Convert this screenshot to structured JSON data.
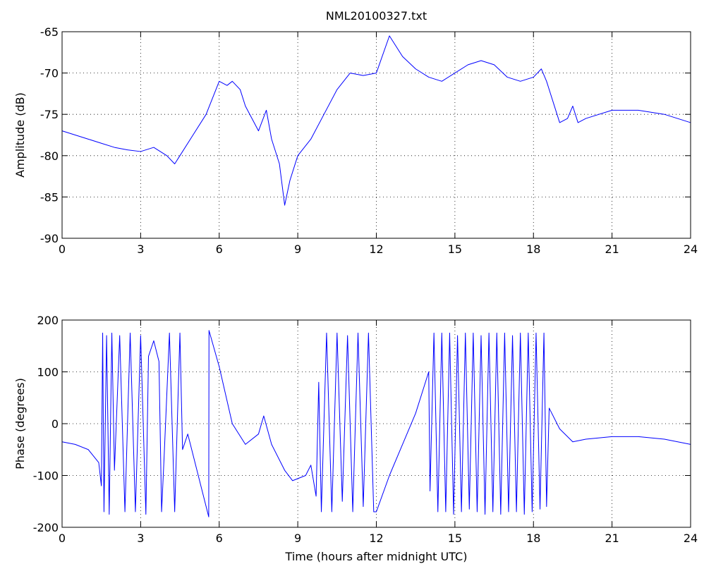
{
  "chart_data": [
    {
      "type": "line",
      "title": "NML20100327.txt",
      "ylabel": "Amplitude (dB)",
      "color": "#0000ff",
      "grid": true,
      "xlim": [
        0,
        24
      ],
      "xticks": [
        0,
        3,
        6,
        9,
        12,
        15,
        18,
        21,
        24
      ],
      "ylim": [
        -90,
        -65
      ],
      "yticks": [
        -90,
        -85,
        -80,
        -75,
        -70,
        -65
      ],
      "x": [
        0,
        0.5,
        1,
        1.5,
        2,
        2.5,
        3,
        3.5,
        4,
        4.3,
        4.5,
        5,
        5.5,
        6,
        6.3,
        6.5,
        6.8,
        7,
        7.5,
        7.8,
        8,
        8.3,
        8.5,
        8.7,
        9,
        9.5,
        10,
        10.5,
        11,
        11.5,
        12,
        12.5,
        13,
        13.5,
        14,
        14.5,
        15,
        15.5,
        16,
        16.5,
        17,
        17.5,
        18,
        18.3,
        18.5,
        19,
        19.3,
        19.5,
        19.7,
        20,
        21,
        22,
        23,
        24
      ],
      "values": [
        -77,
        -77.5,
        -78,
        -78.5,
        -79,
        -79.3,
        -79.5,
        -79,
        -80,
        -81,
        -80,
        -77.5,
        -75,
        -71,
        -71.5,
        -71,
        -72,
        -74,
        -77,
        -74.5,
        -78,
        -81,
        -86,
        -83,
        -80,
        -78,
        -75,
        -72,
        -70,
        -70.3,
        -70,
        -65.5,
        -68,
        -69.5,
        -70.5,
        -71,
        -70,
        -69,
        -68.5,
        -69,
        -70.5,
        -71,
        -70.5,
        -69.5,
        -71,
        -76,
        -75.5,
        -74,
        -76,
        -75.5,
        -74.5,
        -74.5,
        -75,
        -76
      ]
    },
    {
      "type": "line",
      "ylabel": "Phase (degrees)",
      "xlabel": "Time (hours after midnight UTC)",
      "color": "#0000ff",
      "grid": true,
      "xlim": [
        0,
        24
      ],
      "xticks": [
        0,
        3,
        6,
        9,
        12,
        15,
        18,
        21,
        24
      ],
      "ylim": [
        -200,
        200
      ],
      "yticks": [
        -200,
        -100,
        0,
        100,
        200
      ],
      "x": [
        0,
        0.5,
        1,
        1.4,
        1.5,
        1.55,
        1.6,
        1.7,
        1.8,
        1.9,
        2.0,
        2.2,
        2.4,
        2.6,
        2.8,
        3.0,
        3.2,
        3.3,
        3.5,
        3.7,
        3.8,
        3.9,
        4.1,
        4.3,
        4.5,
        4.6,
        4.8,
        5.2,
        5.6,
        5.61,
        6,
        6.5,
        7,
        7.5,
        7.7,
        8,
        8.5,
        8.8,
        9.3,
        9.5,
        9.7,
        9.8,
        9.9,
        10.1,
        10.3,
        10.5,
        10.7,
        10.9,
        11.1,
        11.3,
        11.5,
        11.7,
        11.9,
        12,
        12.5,
        13,
        13.5,
        14,
        14.05,
        14.2,
        14.35,
        14.5,
        14.65,
        14.8,
        14.95,
        15.1,
        15.25,
        15.4,
        15.55,
        15.7,
        15.85,
        16,
        16.15,
        16.3,
        16.45,
        16.6,
        16.75,
        16.9,
        17.05,
        17.2,
        17.35,
        17.5,
        17.65,
        17.8,
        17.95,
        18.1,
        18.25,
        18.4,
        18.5,
        18.6,
        19,
        19.5,
        20,
        21,
        22,
        23,
        24
      ],
      "values": [
        -35,
        -40,
        -50,
        -75,
        -120,
        175,
        -170,
        170,
        -175,
        175,
        -90,
        170,
        -170,
        175,
        -170,
        170,
        -175,
        130,
        160,
        120,
        -170,
        -60,
        175,
        -170,
        175,
        -50,
        -20,
        -100,
        -180,
        180,
        110,
        0,
        -40,
        -20,
        15,
        -40,
        -90,
        -110,
        -100,
        -80,
        -140,
        80,
        -170,
        175,
        -170,
        175,
        -150,
        170,
        -170,
        175,
        -160,
        175,
        -170,
        -170,
        -100,
        -40,
        20,
        100,
        -130,
        175,
        -170,
        175,
        -170,
        175,
        -175,
        170,
        -170,
        175,
        -165,
        175,
        -170,
        170,
        -175,
        175,
        -170,
        175,
        -175,
        175,
        -170,
        170,
        -170,
        175,
        -175,
        175,
        -170,
        175,
        -165,
        175,
        -160,
        30,
        -10,
        -35,
        -30,
        -25,
        -25,
        -30,
        -40
      ]
    }
  ]
}
